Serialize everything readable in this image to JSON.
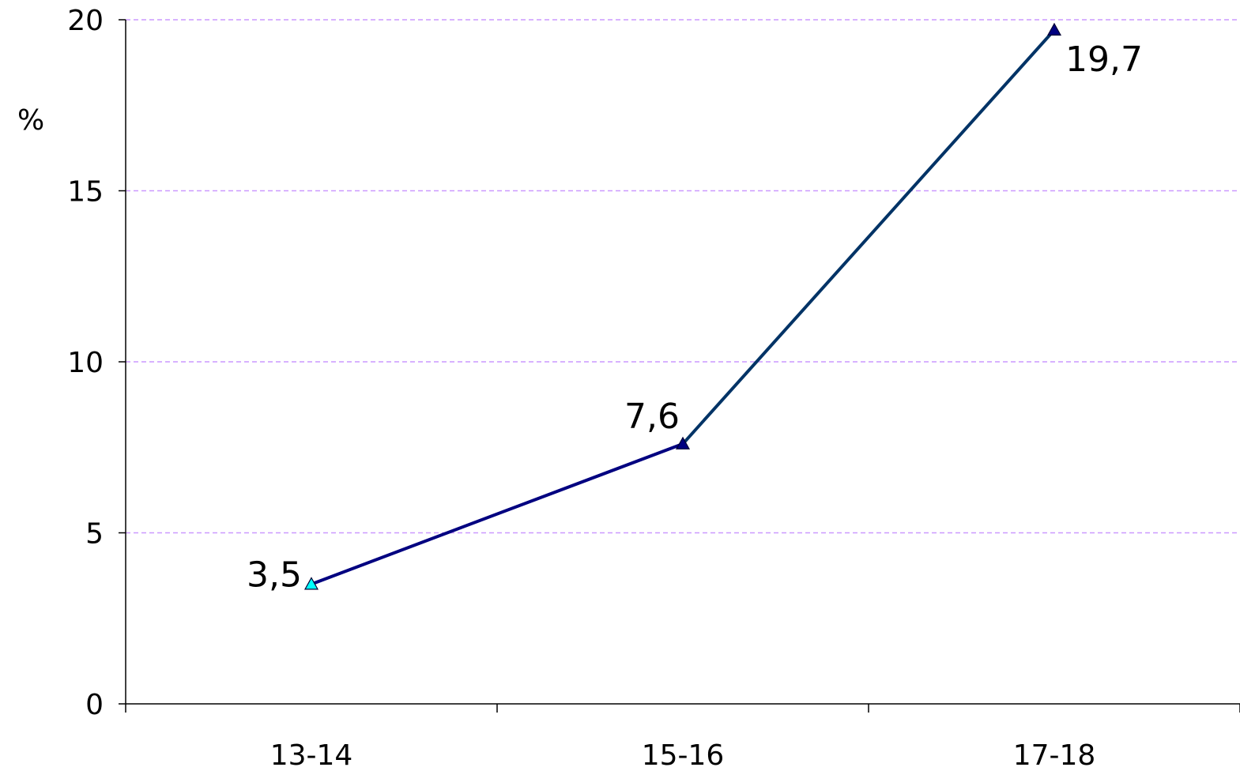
{
  "chart_data": {
    "type": "line",
    "title": "",
    "xlabel": "",
    "ylabel": "%",
    "categories": [
      "13-14",
      "15-16",
      "17-18"
    ],
    "series": [
      {
        "values": [
          3.5,
          7.6,
          19.7
        ]
      }
    ],
    "data_labels": [
      "3,5",
      "7,6",
      "19,7"
    ],
    "yticks": [
      0,
      5,
      10,
      15,
      20
    ],
    "ytick_labels": [
      "0",
      "5",
      "10",
      "15",
      "20"
    ],
    "ylim": [
      0,
      20
    ],
    "grid": true,
    "legend": "none",
    "colors": {
      "line": "#000080",
      "line_segment_2": "#003366",
      "marker": "#000080",
      "first_marker": "#00ffff",
      "grid": "#cc99ff",
      "axis": "#000000"
    }
  }
}
